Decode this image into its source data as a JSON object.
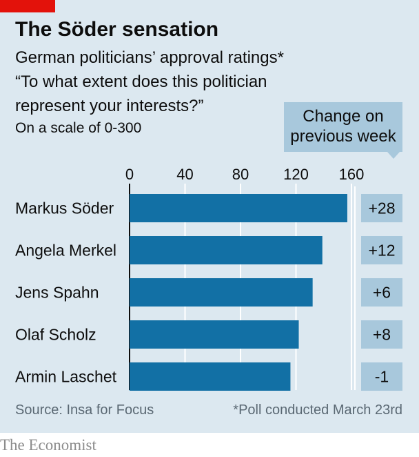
{
  "header": {
    "title": "The Söder sensation",
    "subtitle_lines": [
      "German politicians’ approval ratings*",
      "“To what extent does this politician",
      "represent your interests?”"
    ],
    "scale_note": "On a scale of 0-300",
    "change_box_lines": [
      "Change on",
      "previous week"
    ]
  },
  "chart_data": {
    "type": "bar",
    "orientation": "horizontal",
    "categories": [
      "Markus Söder",
      "Angela Merkel",
      "Jens Spahn",
      "Olaf Scholz",
      "Armin Laschet"
    ],
    "values": [
      157,
      139,
      132,
      122,
      116
    ],
    "xlim": [
      0,
      160
    ],
    "xticks": [
      0,
      40,
      80,
      120,
      160
    ],
    "changes": [
      "+28",
      "+12",
      "+6",
      "+8",
      "-1"
    ],
    "bar_color": "#1270a5",
    "grid": true
  },
  "footer": {
    "source": "Source: Insa for Focus",
    "footnote": "*Poll conducted March 23rd",
    "brand": "The Economist"
  },
  "colors": {
    "background": "#dce8f0",
    "accent_red": "#e3120b",
    "change_box": "#a8c8dc"
  }
}
